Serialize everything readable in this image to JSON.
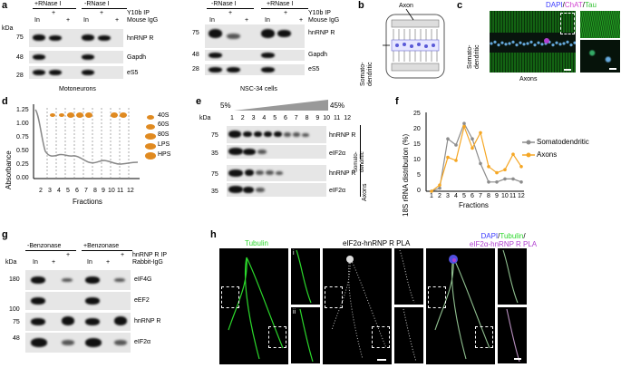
{
  "panels": {
    "a": {
      "letter": "a",
      "left": {
        "groups": [
          "+RNase I",
          "-RNase I"
        ],
        "ip": "Y10b IP",
        "igg": "Mouse IgG",
        "in": "In",
        "plus": "+",
        "minus": "-",
        "markers": [
          "75",
          "48",
          "28"
        ],
        "rows": [
          "hnRNP R",
          "Gapdh",
          "eS5"
        ],
        "caption": "Motoneurons"
      },
      "right": {
        "groups": [
          "-RNase I",
          "+RNase I"
        ],
        "ip": "Y10b IP",
        "igg": "Mouse IgG",
        "in": "In",
        "plus": "+",
        "minus": "-",
        "markers": [
          "75",
          "48",
          "28"
        ],
        "rows": [
          "hnRNP R",
          "Gapdh",
          "eS5"
        ],
        "caption": "NSC-34 cells"
      }
    },
    "b": {
      "letter": "b",
      "axon": "Axon",
      "somato": "Somato-\ndendritic"
    },
    "c": {
      "letter": "c",
      "title_dapi": "DAPI",
      "sep1": "/",
      "title_chat": "ChAT",
      "sep2": "/",
      "title_tau": "Tau",
      "somato": "Somato-\ndendritic",
      "axons": "Axons"
    },
    "d": {
      "letter": "d",
      "ylabel": "Absorbance",
      "xlabel": "Fractions",
      "yticks": [
        "1.25",
        "1.00",
        "0.75",
        "0.50",
        "0.25",
        "0.00"
      ],
      "xticks": [
        "2",
        "3",
        "4",
        "5",
        "6",
        "7",
        "8",
        "9",
        "10",
        "11",
        "12"
      ],
      "legend": [
        "40S",
        "60S",
        "80S",
        "LPS",
        "HPS"
      ]
    },
    "e": {
      "letter": "e",
      "pct_low": "5%",
      "pct_high": "45%",
      "fractions": [
        "1",
        "2",
        "3",
        "4",
        "5",
        "6",
        "7",
        "8",
        "9",
        "10",
        "11",
        "12"
      ],
      "markers_top": [
        "75",
        "35"
      ],
      "markers_bot": [
        "75",
        "35"
      ],
      "rows": [
        "hnRNP R",
        "eIF2α",
        "hnRNP R",
        "eIF2α"
      ],
      "somato": "Somato-\ndendritic",
      "axons": "Axons"
    },
    "f": {
      "letter": "f",
      "ylabel": "18S rRNA distribution (%)",
      "xlabel": "Fractions",
      "yticks": [
        "25",
        "20",
        "15",
        "10",
        "5",
        "0"
      ],
      "xticks": [
        "1",
        "2",
        "3",
        "4",
        "5",
        "6",
        "7",
        "8",
        "9",
        "10",
        "11",
        "12"
      ]
    },
    "g": {
      "letter": "g",
      "groups": [
        "-Benzonase",
        "+Benzonase"
      ],
      "ip": "hnRNP R IP",
      "igg": "Rabbit-IgG",
      "kda": "kDa",
      "in": "In",
      "plus": "+",
      "minus": "-",
      "markers": [
        "180",
        "100",
        "75",
        "48"
      ],
      "rows": [
        "eIF4G",
        "eEF2",
        "hnRNP R",
        "eIF2α"
      ]
    },
    "h": {
      "letter": "h",
      "title1": "Tubulin",
      "title2": "eIF2α-hnRNP R PLA",
      "title3a": "DAPI",
      "title3b": "/",
      "title3c": "Tubulin",
      "title3d": "/",
      "title3e": "eIF2α-hnRNP R PLA",
      "inset_i": "i",
      "inset_ii": "ii"
    },
    "a_kda": "kDa",
    "e_kda": "kDa"
  },
  "colors": {
    "somato": "#8c8c8c",
    "axons": "#f5a623",
    "green": "#2bd82b",
    "magenta": "#b040d0",
    "blue": "#3a3aff",
    "tau": "#35c235",
    "chat": "#d040d0"
  },
  "chart_data": {
    "type": "line",
    "title": "",
    "xlabel": "Fractions",
    "ylabel": "18S rRNA distribution (%)",
    "x": [
      1,
      2,
      3,
      4,
      5,
      6,
      7,
      8,
      9,
      10,
      11,
      12
    ],
    "ylim": [
      0,
      25
    ],
    "series": [
      {
        "name": "Somatodendritic",
        "color": "#8c8c8c",
        "values": [
          0,
          1,
          17,
          15,
          22,
          17,
          9,
          3,
          3,
          4,
          4,
          3
        ]
      },
      {
        "name": "Axons",
        "color": "#f5a623",
        "values": [
          0,
          2,
          11,
          10,
          21,
          14,
          19,
          8,
          6,
          7,
          12,
          8
        ]
      }
    ]
  }
}
